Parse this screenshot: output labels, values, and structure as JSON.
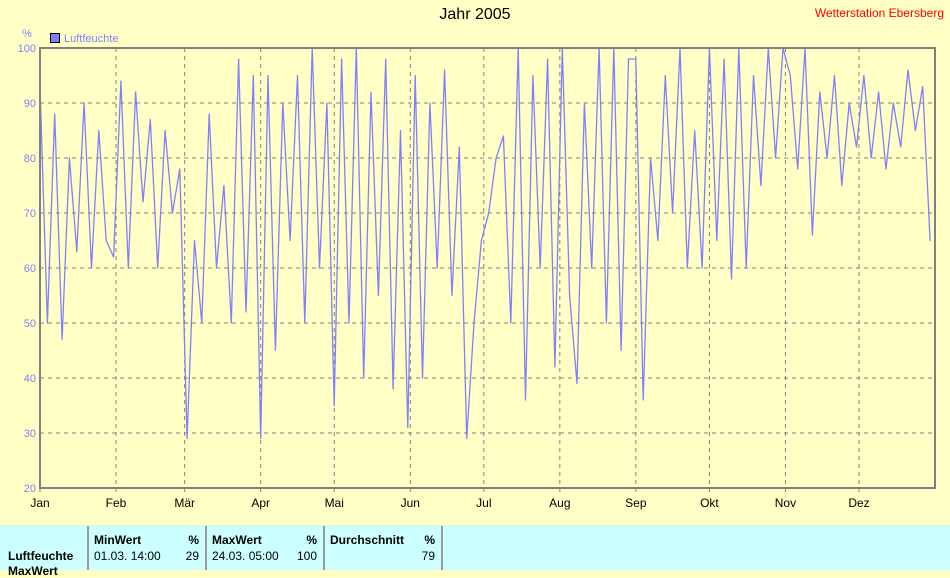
{
  "chart_data": {
    "type": "line",
    "title": "Jahr 2005",
    "subtitle": "Wetterstation Ebersberg",
    "ylabel": "%",
    "ylim": [
      20,
      100
    ],
    "yticks": [
      20,
      30,
      40,
      50,
      60,
      70,
      80,
      90,
      100
    ],
    "xticks": [
      "Jan",
      "Feb",
      "Mär",
      "Apr",
      "Mai",
      "Jun",
      "Jul",
      "Aug",
      "Sep",
      "Okt",
      "Nov",
      "Dez"
    ],
    "xlim": [
      "2005-01-01",
      "2005-12-31"
    ],
    "grid": true,
    "legend": "top-left",
    "colors": {
      "series": "#8080FF",
      "background": "#FFFFC6",
      "grid": "#808080",
      "subtitle": "#FF0000"
    },
    "series": [
      {
        "name": "Luftfeuchte",
        "points": [
          [
            "2005-01-01",
            93
          ],
          [
            "2005-01-04",
            50
          ],
          [
            "2005-01-07",
            88
          ],
          [
            "2005-01-10",
            47
          ],
          [
            "2005-01-13",
            80
          ],
          [
            "2005-01-16",
            63
          ],
          [
            "2005-01-19",
            90
          ],
          [
            "2005-01-22",
            60
          ],
          [
            "2005-01-25",
            85
          ],
          [
            "2005-01-28",
            65
          ],
          [
            "2005-01-31",
            62
          ],
          [
            "2005-02-03",
            94
          ],
          [
            "2005-02-06",
            60
          ],
          [
            "2005-02-09",
            92
          ],
          [
            "2005-02-12",
            72
          ],
          [
            "2005-02-15",
            87
          ],
          [
            "2005-02-18",
            60
          ],
          [
            "2005-02-21",
            85
          ],
          [
            "2005-02-24",
            70
          ],
          [
            "2005-02-27",
            78
          ],
          [
            "2005-03-02",
            29
          ],
          [
            "2005-03-05",
            65
          ],
          [
            "2005-03-08",
            50
          ],
          [
            "2005-03-11",
            88
          ],
          [
            "2005-03-14",
            60
          ],
          [
            "2005-03-17",
            75
          ],
          [
            "2005-03-20",
            50
          ],
          [
            "2005-03-23",
            98
          ],
          [
            "2005-03-26",
            52
          ],
          [
            "2005-03-29",
            95
          ],
          [
            "2005-04-01",
            29
          ],
          [
            "2005-04-04",
            95
          ],
          [
            "2005-04-07",
            45
          ],
          [
            "2005-04-10",
            90
          ],
          [
            "2005-04-13",
            65
          ],
          [
            "2005-04-16",
            95
          ],
          [
            "2005-04-19",
            50
          ],
          [
            "2005-04-22",
            100
          ],
          [
            "2005-04-25",
            60
          ],
          [
            "2005-04-28",
            90
          ],
          [
            "2005-05-01",
            35
          ],
          [
            "2005-05-04",
            98
          ],
          [
            "2005-05-07",
            50
          ],
          [
            "2005-05-10",
            100
          ],
          [
            "2005-05-13",
            40
          ],
          [
            "2005-05-16",
            92
          ],
          [
            "2005-05-19",
            55
          ],
          [
            "2005-05-22",
            98
          ],
          [
            "2005-05-25",
            38
          ],
          [
            "2005-05-28",
            85
          ],
          [
            "2005-05-31",
            31
          ],
          [
            "2005-06-03",
            95
          ],
          [
            "2005-06-06",
            40
          ],
          [
            "2005-06-09",
            90
          ],
          [
            "2005-06-12",
            60
          ],
          [
            "2005-06-15",
            96
          ],
          [
            "2005-06-18",
            55
          ],
          [
            "2005-06-21",
            82
          ],
          [
            "2005-06-24",
            29
          ],
          [
            "2005-06-27",
            50
          ],
          [
            "2005-06-30",
            65
          ],
          [
            "2005-07-03",
            70
          ],
          [
            "2005-07-06",
            80
          ],
          [
            "2005-07-09",
            84
          ],
          [
            "2005-07-12",
            50
          ],
          [
            "2005-07-15",
            100
          ],
          [
            "2005-07-18",
            36
          ],
          [
            "2005-07-21",
            95
          ],
          [
            "2005-07-24",
            60
          ],
          [
            "2005-07-27",
            98
          ],
          [
            "2005-07-30",
            42
          ],
          [
            "2005-08-02",
            100
          ],
          [
            "2005-08-05",
            55
          ],
          [
            "2005-08-08",
            39
          ],
          [
            "2005-08-11",
            90
          ],
          [
            "2005-08-14",
            60
          ],
          [
            "2005-08-17",
            100
          ],
          [
            "2005-08-20",
            50
          ],
          [
            "2005-08-23",
            100
          ],
          [
            "2005-08-26",
            45
          ],
          [
            "2005-08-29",
            98
          ],
          [
            "2005-09-01",
            98
          ],
          [
            "2005-09-04",
            36
          ],
          [
            "2005-09-07",
            80
          ],
          [
            "2005-09-10",
            65
          ],
          [
            "2005-09-13",
            95
          ],
          [
            "2005-09-16",
            70
          ],
          [
            "2005-09-19",
            100
          ],
          [
            "2005-09-22",
            60
          ],
          [
            "2005-09-25",
            85
          ],
          [
            "2005-09-28",
            60
          ],
          [
            "2005-10-01",
            100
          ],
          [
            "2005-10-04",
            65
          ],
          [
            "2005-10-07",
            98
          ],
          [
            "2005-10-10",
            58
          ],
          [
            "2005-10-13",
            100
          ],
          [
            "2005-10-16",
            60
          ],
          [
            "2005-10-19",
            95
          ],
          [
            "2005-10-22",
            75
          ],
          [
            "2005-10-25",
            100
          ],
          [
            "2005-10-28",
            80
          ],
          [
            "2005-10-31",
            100
          ],
          [
            "2005-11-03",
            95
          ],
          [
            "2005-11-06",
            78
          ],
          [
            "2005-11-09",
            100
          ],
          [
            "2005-11-12",
            66
          ],
          [
            "2005-11-15",
            92
          ],
          [
            "2005-11-18",
            80
          ],
          [
            "2005-11-21",
            95
          ],
          [
            "2005-11-24",
            75
          ],
          [
            "2005-11-27",
            90
          ],
          [
            "2005-11-30",
            82
          ],
          [
            "2005-12-03",
            95
          ],
          [
            "2005-12-06",
            80
          ],
          [
            "2005-12-09",
            92
          ],
          [
            "2005-12-12",
            78
          ],
          [
            "2005-12-15",
            90
          ],
          [
            "2005-12-18",
            82
          ],
          [
            "2005-12-21",
            96
          ],
          [
            "2005-12-24",
            85
          ],
          [
            "2005-12-27",
            93
          ],
          [
            "2005-12-30",
            65
          ]
        ]
      }
    ]
  },
  "table": {
    "row_label": "Luftfeuchte",
    "row_label_2": "MaxWert",
    "min": {
      "header": "MinWert",
      "unit": "%",
      "time": "01.03.  14:00",
      "value": "29"
    },
    "max": {
      "header": "MaxWert",
      "unit": "%",
      "time": "24.03.  05:00",
      "value": "100"
    },
    "avg": {
      "header": "Durchschnitt",
      "unit": "%",
      "value": "79"
    }
  }
}
